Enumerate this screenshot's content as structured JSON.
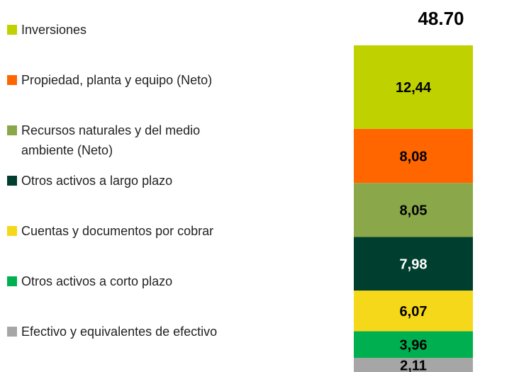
{
  "chart_data": {
    "type": "stacked_bar",
    "title": "48.70",
    "series": [
      {
        "name": "Efectivo y equivalentes de efectivo",
        "color": "#a6a6a6",
        "label_color": "#000000",
        "values": [
          2.11
        ],
        "value_labels": [
          "2,11"
        ]
      },
      {
        "name": "Otros activos a corto plazo",
        "color": "#00b050",
        "label_color": "#000000",
        "values": [
          3.96
        ],
        "value_labels": [
          "3,96"
        ]
      },
      {
        "name": "Cuentas y documentos por cobrar",
        "color": "#f5d819",
        "label_color": "#000000",
        "values": [
          6.07
        ],
        "value_labels": [
          "6,07"
        ]
      },
      {
        "name": "Otros activos a largo plazo",
        "color": "#003f2f",
        "label_color": "#ffffff",
        "values": [
          7.98
        ],
        "value_labels": [
          "7,98"
        ]
      },
      {
        "name": "Recursos naturales y del medio ambiente (Neto)",
        "color": "#8aa84a",
        "label_color": "#000000",
        "values": [
          8.05
        ],
        "value_labels": [
          "8,05"
        ]
      },
      {
        "name": "Propiedad, planta y equipo (Neto)",
        "color": "#ff6600",
        "label_color": "#000000",
        "values": [
          8.08
        ],
        "value_labels": [
          "8,08"
        ]
      },
      {
        "name": "Inversiones",
        "color": "#bfd200",
        "label_color": "#000000",
        "values": [
          12.44
        ],
        "value_labels": [
          "12,44"
        ]
      }
    ]
  }
}
